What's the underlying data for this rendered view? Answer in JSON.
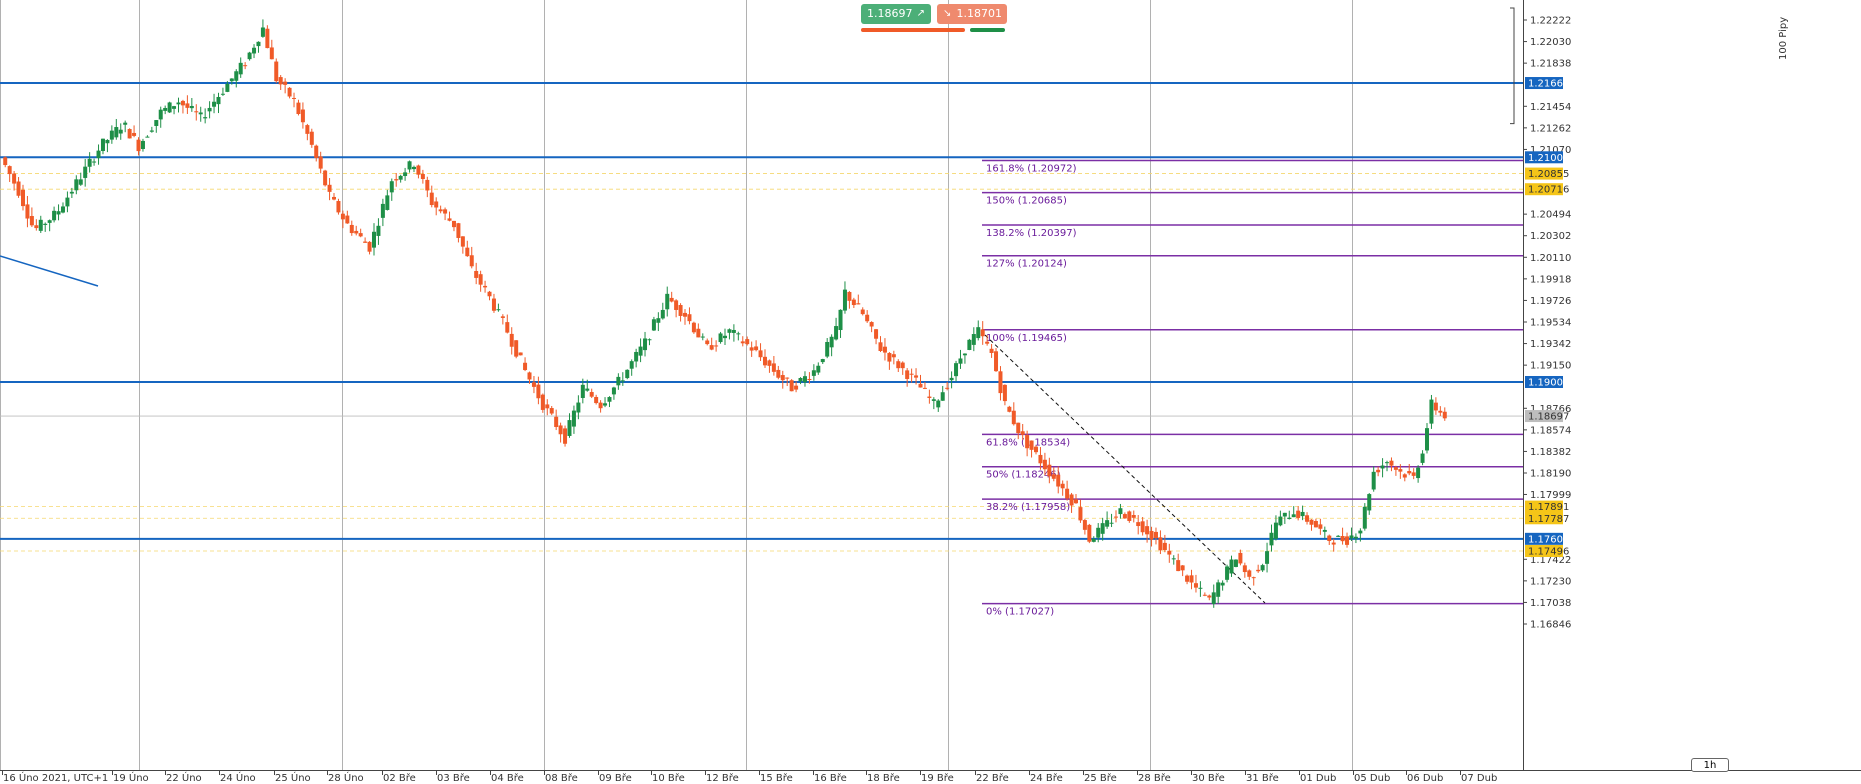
{
  "trade": {
    "sell_price": "1.18697",
    "buy_price": "1.18701",
    "sell_arrow": "↗",
    "buy_arrow": "↘",
    "sell_color": "#4caf78",
    "buy_color": "#ef8a6e"
  },
  "timeframe": "1h",
  "pips_label": "100 Pipy",
  "colors": {
    "bull": "#1e8f47",
    "bear": "#f05a28",
    "level": "#1565c0",
    "fib": "#7b2fa5",
    "grid": "#9e9e9e",
    "tag_blue": "#1565c0",
    "tag_yellow": "#f5c518",
    "tag_grey": "#bdbdbd"
  },
  "chart_data": {
    "type": "candlestick",
    "price_ticks": [
      "1.22222",
      "1.22030",
      "1.21838",
      "1.21454",
      "1.21262",
      "1.21070",
      "1.20494",
      "1.20302",
      "1.20110",
      "1.19918",
      "1.19726",
      "1.19534",
      "1.19342",
      "1.19150",
      "1.18766",
      "1.18574",
      "1.18382",
      "1.18190",
      "1.17999",
      "1.17422",
      "1.17230",
      "1.17038",
      "1.16846"
    ],
    "time_labels": [
      "16 Úno 2021, UTC+1",
      "19 Úno",
      "22 Úno",
      "24 Úno",
      "25 Úno",
      "28 Úno",
      "02 Bře",
      "03 Bře",
      "04 Bře",
      "08 Bře",
      "09 Bře",
      "10 Bře",
      "12 Bře",
      "15 Bře",
      "16 Bře",
      "18 Bře",
      "19 Bře",
      "22 Bře",
      "24 Bře",
      "25 Bře",
      "28 Bře",
      "30 Bře",
      "31 Bře",
      "01 Dub",
      "05 Dub",
      "06 Dub",
      "07 Dub"
    ],
    "price_tags": [
      {
        "value": "1.21661",
        "style": "blue"
      },
      {
        "value": "1.21000",
        "style": "blue"
      },
      {
        "value": "1.20855",
        "style": "yellow"
      },
      {
        "value": "1.20716",
        "style": "yellow"
      },
      {
        "value": "1.19000",
        "style": "blue"
      },
      {
        "value": "1.18697",
        "style": "grey"
      },
      {
        "value": "1.17891",
        "style": "yellow"
      },
      {
        "value": "1.17787",
        "style": "yellow"
      },
      {
        "value": "1.17604",
        "style": "blue"
      },
      {
        "value": "1.17496",
        "style": "yellow"
      }
    ],
    "horizontal_levels": [
      1.21661,
      1.21,
      1.19,
      1.17604
    ],
    "dashed_levels": [
      1.20855,
      1.20716,
      1.17891,
      1.17787,
      1.17496
    ],
    "fib_levels": [
      {
        "label": "161.8% (1.20972)",
        "price": 1.20972
      },
      {
        "label": "150% (1.20685)",
        "price": 1.20685
      },
      {
        "label": "138.2% (1.20397)",
        "price": 1.20397
      },
      {
        "label": "127% (1.20124)",
        "price": 1.20124
      },
      {
        "label": "100% (1.19465)",
        "price": 1.19465
      },
      {
        "label": "61.8% (1.18534)",
        "price": 1.18534
      },
      {
        "label": "50% (1.18246)",
        "price": 1.18246
      },
      {
        "label": "38.2% (1.17958)",
        "price": 1.17958
      },
      {
        "label": "0% (1.17027)",
        "price": 1.17027
      }
    ],
    "price_range": [
      1.167,
      1.2236
    ],
    "current_price": 1.18697,
    "candle_count": 340,
    "close_path": [
      [
        0,
        1.21
      ],
      [
        8,
        1.207
      ],
      [
        15,
        1.2035
      ],
      [
        25,
        1.205
      ],
      [
        35,
        1.208
      ],
      [
        45,
        1.211
      ],
      [
        55,
        1.213
      ],
      [
        62,
        1.211
      ],
      [
        72,
        1.214
      ],
      [
        80,
        1.215
      ],
      [
        90,
        1.2135
      ],
      [
        100,
        1.216
      ],
      [
        110,
        1.2185
      ],
      [
        118,
        1.2215
      ],
      [
        124,
        1.217
      ],
      [
        132,
        1.215
      ],
      [
        140,
        1.211
      ],
      [
        148,
        1.2065
      ],
      [
        156,
        1.204
      ],
      [
        166,
        1.202
      ],
      [
        176,
        1.208
      ],
      [
        186,
        1.2095
      ],
      [
        194,
        1.206
      ],
      [
        204,
        1.204
      ],
      [
        212,
        1.2
      ],
      [
        220,
        1.1975
      ],
      [
        228,
        1.1945
      ],
      [
        236,
        1.191
      ],
      [
        244,
        1.188
      ],
      [
        254,
        1.185
      ],
      [
        262,
        1.1895
      ],
      [
        270,
        1.188
      ],
      [
        280,
        1.1905
      ],
      [
        290,
        1.1935
      ],
      [
        300,
        1.1975
      ],
      [
        308,
        1.196
      ],
      [
        318,
        1.193
      ],
      [
        328,
        1.1945
      ],
      [
        338,
        1.193
      ],
      [
        348,
        1.191
      ],
      [
        356,
        1.1895
      ],
      [
        366,
        1.191
      ],
      [
        376,
        1.1945
      ],
      [
        380,
        1.198
      ],
      [
        388,
        1.196
      ],
      [
        396,
        1.193
      ],
      [
        404,
        1.1915
      ],
      [
        412,
        1.19
      ],
      [
        420,
        1.188
      ],
      [
        428,
        1.1905
      ],
      [
        434,
        1.193
      ],
      [
        440,
        1.1945
      ],
      [
        446,
        1.1925
      ],
      [
        452,
        1.188
      ],
      [
        460,
        1.185
      ],
      [
        468,
        1.183
      ],
      [
        476,
        1.181
      ],
      [
        484,
        1.179
      ],
      [
        490,
        1.176
      ],
      [
        496,
        1.177
      ],
      [
        504,
        1.1785
      ],
      [
        512,
        1.1775
      ],
      [
        520,
        1.176
      ],
      [
        528,
        1.174
      ],
      [
        536,
        1.172
      ],
      [
        544,
        1.1705
      ],
      [
        550,
        1.1725
      ],
      [
        556,
        1.1745
      ],
      [
        562,
        1.1725
      ],
      [
        568,
        1.174
      ],
      [
        574,
        1.1775
      ],
      [
        582,
        1.1785
      ],
      [
        590,
        1.1775
      ],
      [
        598,
        1.176
      ],
      [
        606,
        1.176
      ],
      [
        612,
        1.177
      ],
      [
        618,
        1.182
      ],
      [
        624,
        1.183
      ],
      [
        630,
        1.182
      ],
      [
        636,
        1.1815
      ],
      [
        640,
        1.184
      ],
      [
        644,
        1.188
      ],
      [
        650,
        1.187
      ]
    ]
  }
}
